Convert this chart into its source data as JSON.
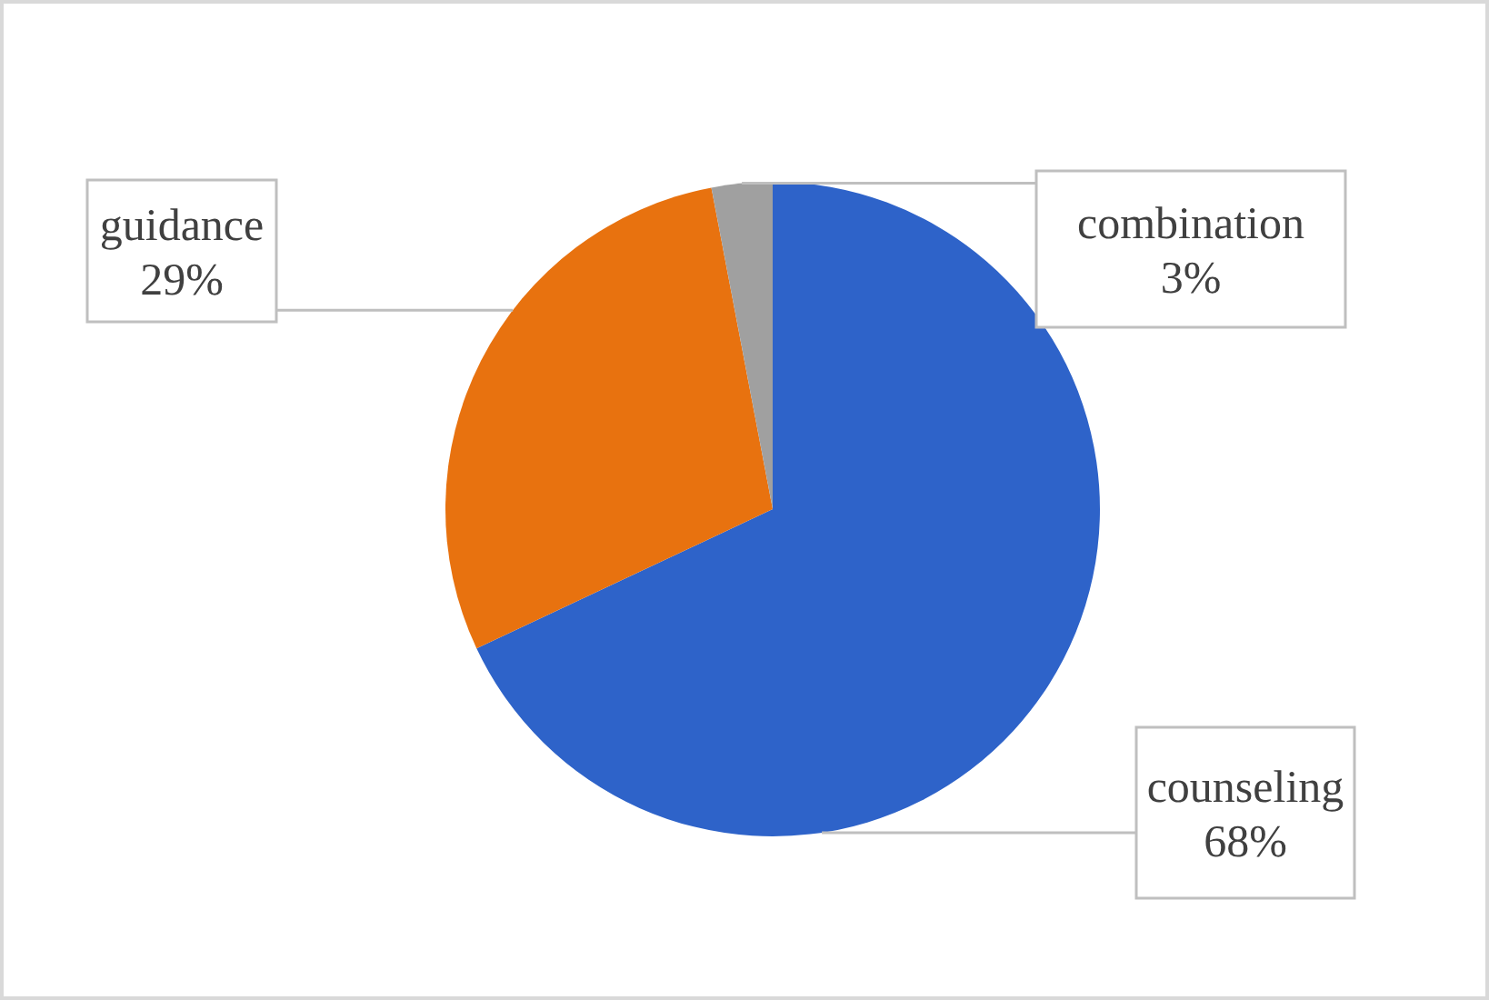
{
  "chart_data": {
    "type": "pie",
    "categories": [
      "counseling",
      "guidance",
      "combination"
    ],
    "values": [
      68,
      29,
      3
    ],
    "value_labels": [
      "68%",
      "29%",
      "3%"
    ],
    "colors": [
      "#2e63c9",
      "#e8720f",
      "#a0a0a0"
    ]
  }
}
